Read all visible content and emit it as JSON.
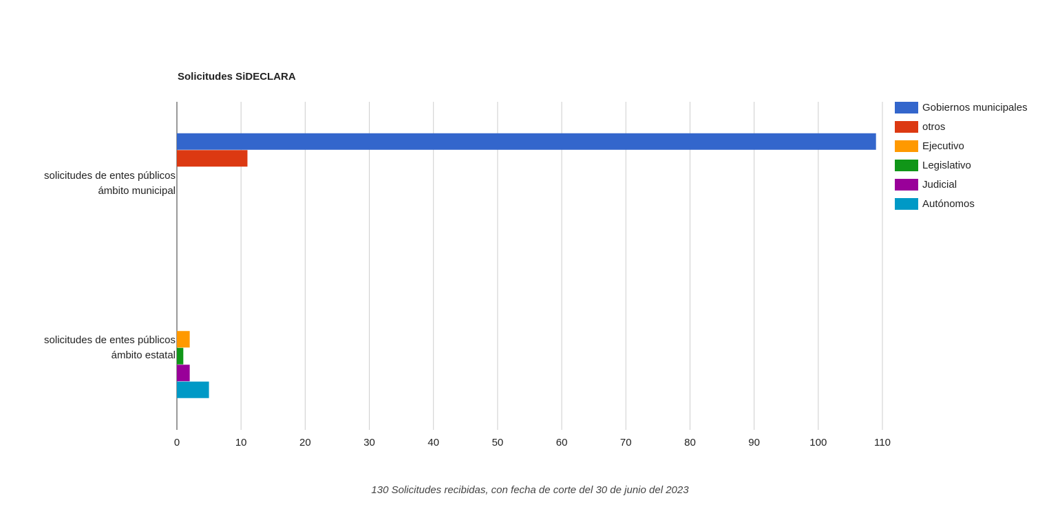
{
  "chart_data": {
    "type": "hbar",
    "title": "Solicitudes SiDECLARA",
    "caption": "130 Solicitudes recibidas, con fecha de corte del 30 de junio del 2023",
    "categories": [
      "solicitudes de entes públicos ámbito municipal",
      "solicitudes de entes públicos ámbito estatal"
    ],
    "series": [
      {
        "name": "Gobiernos municipales",
        "color": "#3366cc",
        "values": [
          109,
          null
        ]
      },
      {
        "name": "otros",
        "color": "#dc3912",
        "values": [
          11,
          null
        ]
      },
      {
        "name": "Ejecutivo",
        "color": "#ff9900",
        "values": [
          null,
          2
        ]
      },
      {
        "name": "Legislativo",
        "color": "#109618",
        "values": [
          null,
          1
        ]
      },
      {
        "name": "Judicial",
        "color": "#990099",
        "values": [
          null,
          2
        ]
      },
      {
        "name": "Autónomos",
        "color": "#0099c6",
        "values": [
          null,
          5
        ]
      }
    ],
    "xlim": [
      0,
      110
    ],
    "xticks": [
      0,
      10,
      20,
      30,
      40,
      50,
      60,
      70,
      80,
      90,
      100,
      110
    ],
    "grid": true,
    "legend": "right"
  }
}
